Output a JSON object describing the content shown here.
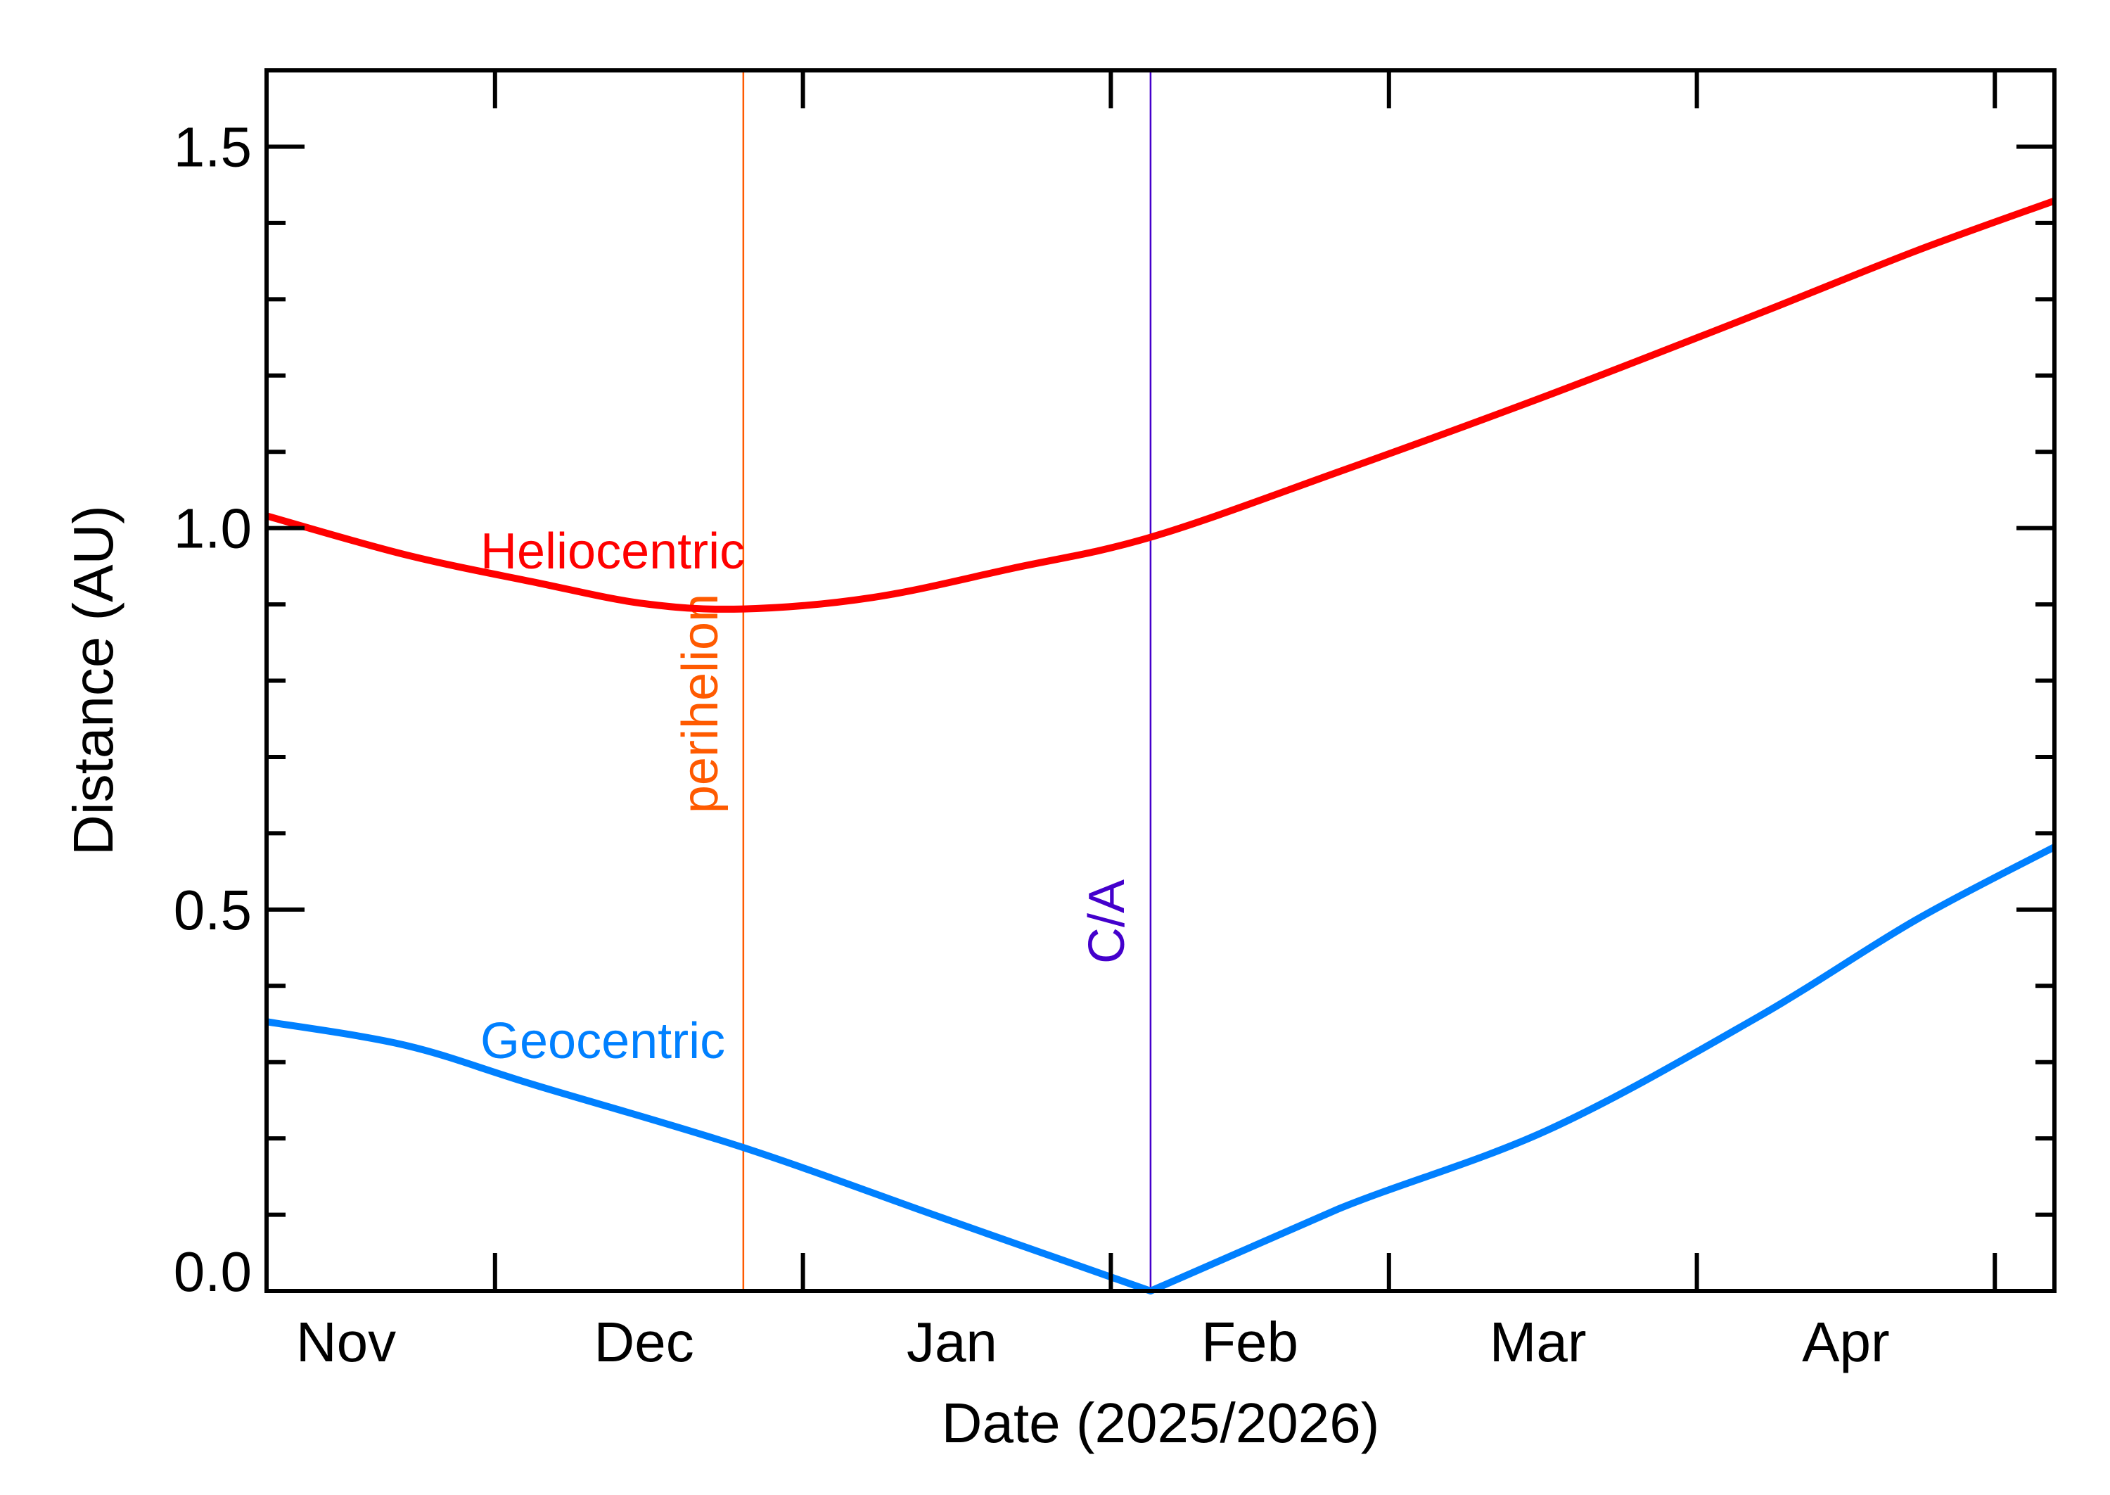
{
  "chart_data": {
    "type": "line",
    "title": "",
    "xlabel": "Date (2025/2026)",
    "ylabel": "Distance (AU)",
    "xlim": [
      "2025-11-08",
      "2026-05-07"
    ],
    "ylim": [
      0,
      1.6
    ],
    "grid": false,
    "x_ticks": [
      {
        "date": "2025-12-01"
      },
      {
        "date": "2026-01-01"
      },
      {
        "date": "2026-02-01"
      },
      {
        "date": "2026-03-01"
      },
      {
        "date": "2026-04-01"
      },
      {
        "date": "2026-05-01"
      }
    ],
    "x_tick_labels": [
      {
        "label": "Nov",
        "date": "2025-11-16"
      },
      {
        "label": "Dec",
        "date": "2025-12-16"
      },
      {
        "label": "Jan",
        "date": "2026-01-16"
      },
      {
        "label": "Feb",
        "date": "2026-02-15"
      },
      {
        "label": "Mar",
        "date": "2026-03-16"
      },
      {
        "label": "Apr",
        "date": "2026-04-16"
      }
    ],
    "y_ticks": [
      {
        "value": 0.0,
        "label": "0.0"
      },
      {
        "value": 0.5,
        "label": "0.5"
      },
      {
        "value": 1.0,
        "label": "1.0"
      },
      {
        "value": 1.5,
        "label": "1.5"
      }
    ],
    "y_minor_step": 0.1,
    "series": [
      {
        "name": "Heliocentric",
        "color": "#ff0000",
        "points": [
          [
            "2025-11-08",
            1.016
          ],
          [
            "2025-11-22",
            0.965
          ],
          [
            "2025-12-05",
            0.929
          ],
          [
            "2025-12-16",
            0.901
          ],
          [
            "2025-12-26",
            0.894
          ],
          [
            "2026-01-08",
            0.909
          ],
          [
            "2026-01-22",
            0.947
          ],
          [
            "2026-02-05",
            0.988
          ],
          [
            "2026-02-24",
            1.074
          ],
          [
            "2026-03-17",
            1.174
          ],
          [
            "2026-04-07",
            1.28
          ],
          [
            "2026-04-23",
            1.363
          ],
          [
            "2026-05-07",
            1.429
          ]
        ]
      },
      {
        "name": "Geocentric",
        "color": "#0080ff",
        "points": [
          [
            "2025-11-08",
            0.353
          ],
          [
            "2025-11-22",
            0.322
          ],
          [
            "2025-12-05",
            0.27
          ],
          [
            "2025-12-26",
            0.188
          ],
          [
            "2026-01-15",
            0.096
          ],
          [
            "2026-02-05",
            0.0
          ],
          [
            "2026-02-24",
            0.108
          ],
          [
            "2026-03-17",
            0.211
          ],
          [
            "2026-04-07",
            0.358
          ],
          [
            "2026-04-23",
            0.486
          ],
          [
            "2026-05-07",
            0.582
          ]
        ]
      }
    ],
    "markers": [
      {
        "label": "perihelion",
        "date": "2025-12-26",
        "color": "#ff5a00"
      },
      {
        "label": "C/A",
        "date": "2026-02-05",
        "color": "#4400cc"
      }
    ]
  }
}
